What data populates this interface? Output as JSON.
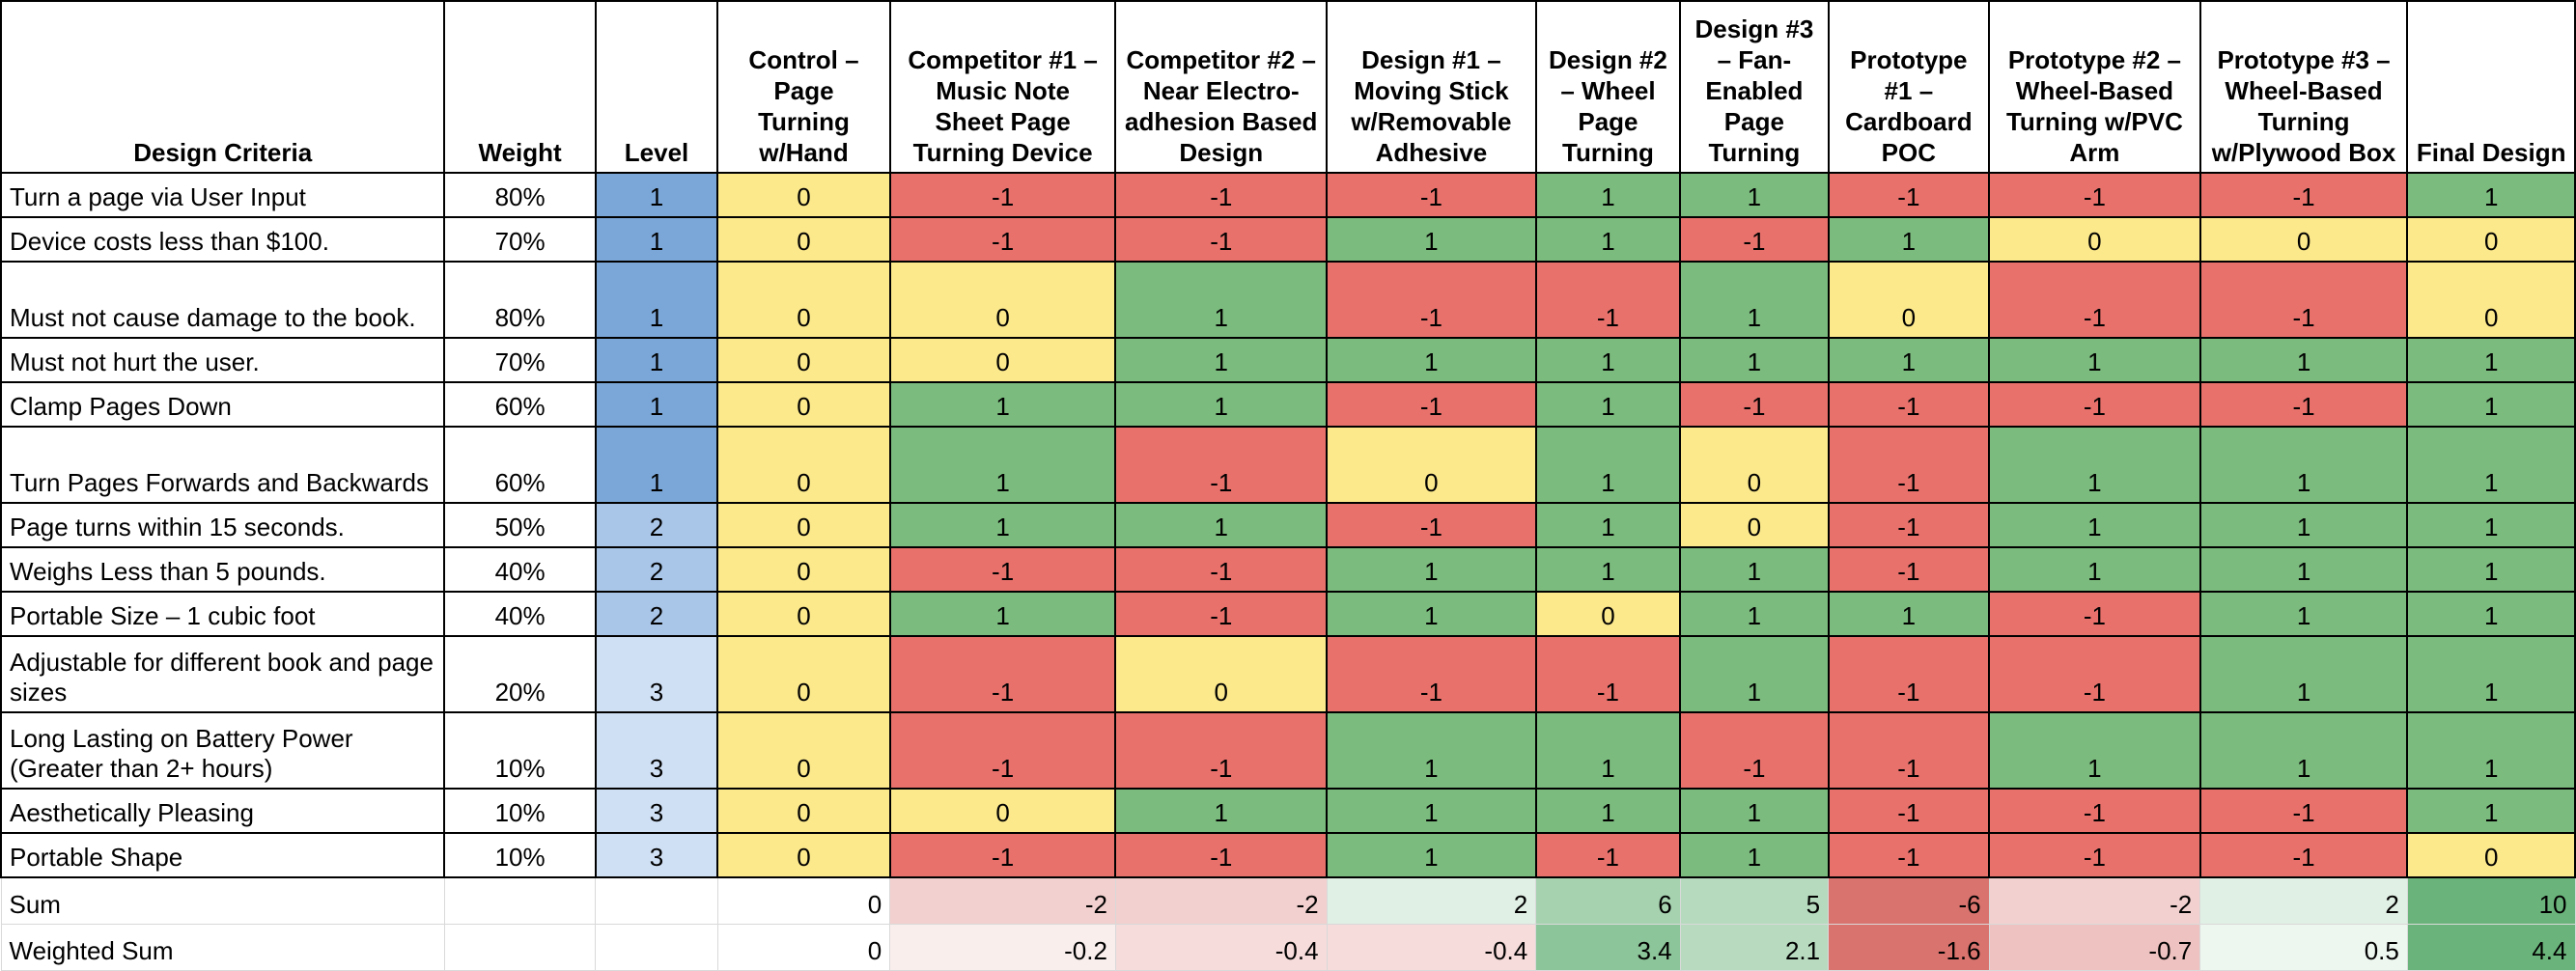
{
  "headers": {
    "criteria": "Design Criteria",
    "weight": "Weight",
    "level": "Level",
    "options": [
      "Control – Page Turning w/Hand",
      "Competitor #1 – Music Note Sheet Page Turning Device",
      "Competitor #2 – Near Electro-adhesion Based Design",
      "Design #1 – Moving Stick w/Removable Adhesive",
      "Design #2 – Wheel Page Turning",
      "Design #3 – Fan-Enabled Page Turning",
      "Prototype #1 – Cardboard POC",
      "Prototype #2 – Wheel-Based Turning w/PVC Arm",
      "Prototype #3 – Wheel-Based Turning w/Plywood Box",
      "Final Design"
    ]
  },
  "rows": [
    {
      "criteria": "Turn a page via User Input",
      "weight": "80%",
      "level": "1",
      "scores": [
        "0",
        "-1",
        "-1",
        "-1",
        "1",
        "1",
        "-1",
        "-1",
        "-1",
        "1"
      ]
    },
    {
      "criteria": "Device costs less than $100.",
      "weight": "70%",
      "level": "1",
      "scores": [
        "0",
        "-1",
        "-1",
        "1",
        "1",
        "-1",
        "1",
        "0",
        "0",
        "0"
      ]
    },
    {
      "criteria": "Must not cause damage to the book.",
      "weight": "80%",
      "level": "1",
      "scores": [
        "0",
        "0",
        "1",
        "-1",
        "-1",
        "1",
        "0",
        "-1",
        "-1",
        "0"
      ]
    },
    {
      "criteria": "Must not hurt the user.",
      "weight": "70%",
      "level": "1",
      "scores": [
        "0",
        "0",
        "1",
        "1",
        "1",
        "1",
        "1",
        "1",
        "1",
        "1"
      ]
    },
    {
      "criteria": "Clamp Pages Down",
      "weight": "60%",
      "level": "1",
      "scores": [
        "0",
        "1",
        "1",
        "-1",
        "1",
        "-1",
        "-1",
        "-1",
        "-1",
        "1"
      ]
    },
    {
      "criteria": "Turn Pages Forwards and Backwards",
      "weight": "60%",
      "level": "1",
      "scores": [
        "0",
        "1",
        "-1",
        "0",
        "1",
        "0",
        "-1",
        "1",
        "1",
        "1"
      ]
    },
    {
      "criteria": "Page turns within 15 seconds.",
      "weight": "50%",
      "level": "2",
      "scores": [
        "0",
        "1",
        "1",
        "-1",
        "1",
        "0",
        "-1",
        "1",
        "1",
        "1"
      ]
    },
    {
      "criteria": "Weighs Less than 5 pounds.",
      "weight": "40%",
      "level": "2",
      "scores": [
        "0",
        "-1",
        "-1",
        "1",
        "1",
        "1",
        "-1",
        "1",
        "1",
        "1"
      ]
    },
    {
      "criteria": "Portable Size – 1 cubic foot",
      "weight": "40%",
      "level": "2",
      "scores": [
        "0",
        "1",
        "-1",
        "1",
        "0",
        "1",
        "1",
        "-1",
        "1",
        "1"
      ]
    },
    {
      "criteria": "Adjustable for different book and page sizes",
      "weight": "20%",
      "level": "3",
      "scores": [
        "0",
        "-1",
        "0",
        "-1",
        "-1",
        "1",
        "-1",
        "-1",
        "1",
        "1"
      ]
    },
    {
      "criteria": "Long Lasting on Battery Power (Greater than 2+ hours)",
      "weight": "10%",
      "level": "3",
      "scores": [
        "0",
        "-1",
        "-1",
        "1",
        "1",
        "-1",
        "-1",
        "1",
        "1",
        "1"
      ]
    },
    {
      "criteria": "Aesthetically Pleasing",
      "weight": "10%",
      "level": "3",
      "scores": [
        "0",
        "0",
        "1",
        "1",
        "1",
        "1",
        "-1",
        "-1",
        "-1",
        "1"
      ]
    },
    {
      "criteria": "Portable Shape",
      "weight": "10%",
      "level": "3",
      "scores": [
        "0",
        "-1",
        "-1",
        "1",
        "-1",
        "1",
        "-1",
        "-1",
        "-1",
        "0"
      ]
    }
  ],
  "sum": {
    "label": "Sum",
    "values": [
      "0",
      "-2",
      "-2",
      "2",
      "6",
      "5",
      "-6",
      "-2",
      "2",
      "10"
    ]
  },
  "weighted_sum": {
    "label": "Weighted Sum",
    "values": [
      "0",
      "-0.2",
      "-0.4",
      "-0.4",
      "3.4",
      "2.1",
      "-1.6",
      "-0.7",
      "0.5",
      "4.4"
    ]
  },
  "colors": {
    "negative": "#e8716c",
    "zero": "#fce98c",
    "positive": "#7bbb7e",
    "level_1": "#7ba7d8",
    "level_2": "#a9c6e9",
    "level_3": "#d0e0f4",
    "sum_negative": "#d9736e",
    "sum_zero": "#ffffff",
    "sum_positive": "#6ab47b"
  }
}
